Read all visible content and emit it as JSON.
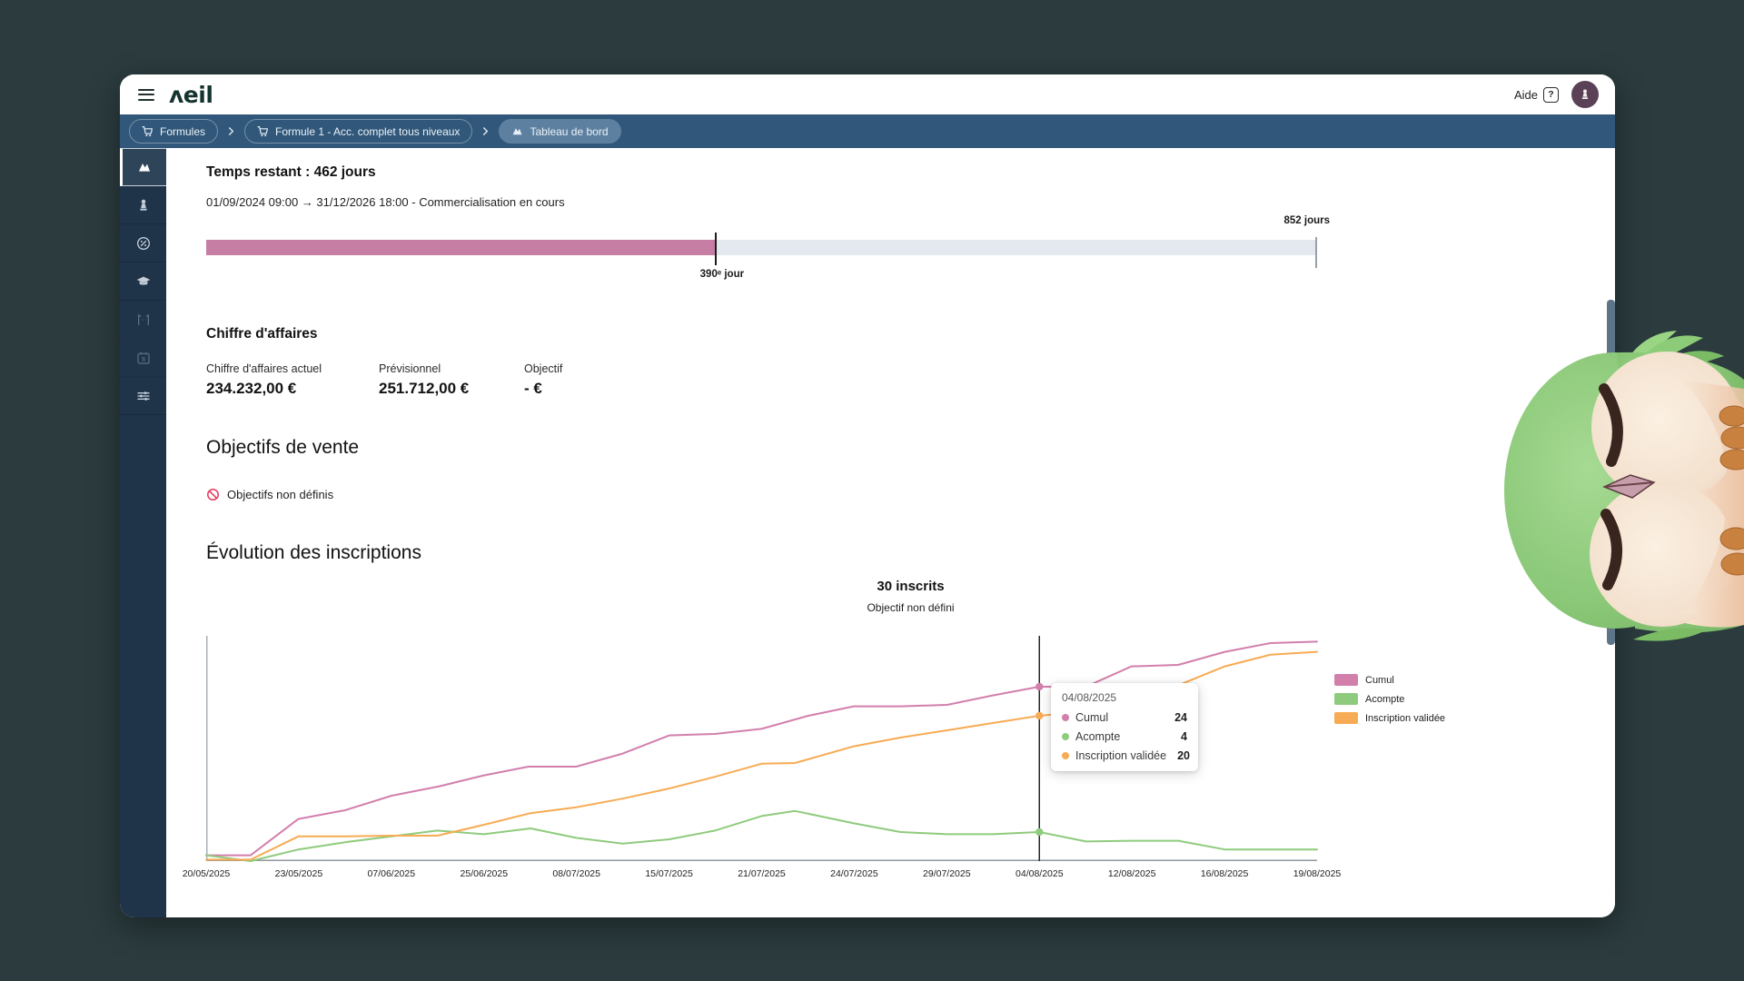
{
  "theme": {
    "background": "#2B3B3E",
    "breadcrumb_blue": "#31587A",
    "sidebar_navy": "#203449",
    "brand_teal": "#16342F",
    "progress_pink": "#C77EA5",
    "progress_track": "#E4E8EF",
    "alert_red": "#E8395E",
    "avatar_plum": "#5A4157"
  },
  "header": {
    "logo_text": "ʌeil",
    "help_label": "Aide",
    "help_icon": "?"
  },
  "breadcrumb": {
    "items": [
      {
        "label": "Formules",
        "icon": "cart"
      },
      {
        "label": "Formule 1 - Acc. complet tous niveaux",
        "icon": "cart"
      },
      {
        "label": "Tableau de bord",
        "icon": "dashboard",
        "active": true
      }
    ]
  },
  "sidebar": {
    "items": [
      {
        "icon": "dashboard-icon",
        "active": true,
        "disabled": false
      },
      {
        "icon": "pawn-icon",
        "active": false,
        "disabled": false
      },
      {
        "icon": "percent-icon",
        "active": false,
        "disabled": false
      },
      {
        "icon": "graduation-cap-icon",
        "active": false,
        "disabled": false
      },
      {
        "icon": "gates-icon",
        "active": false,
        "disabled": true
      },
      {
        "icon": "calendar-s-icon",
        "active": false,
        "disabled": true
      },
      {
        "icon": "sliders-icon",
        "active": false,
        "disabled": false
      }
    ]
  },
  "time_remaining": {
    "title": "Temps restant : 462 jours",
    "period": "01/09/2024 09:00 → 31/12/2026 18:00 - Commercialisation en cours",
    "total_label": "852 jours",
    "current_day_label": "390ᵉ jour",
    "progress_pct": 45.8
  },
  "revenue": {
    "title": "Chiffre d'affaires",
    "metrics": [
      {
        "label": "Chiffre d'affaires actuel",
        "value": "234.232,00 €"
      },
      {
        "label": "Prévisionnel",
        "value": "251.712,00 €"
      },
      {
        "label": "Objectif",
        "value": "- €"
      }
    ]
  },
  "sales_goals": {
    "title": "Objectifs de vente",
    "empty_message": "Objectifs non définis"
  },
  "chart_data": {
    "type": "line",
    "title": "Évolution des inscriptions",
    "headline": "30 inscrits",
    "subheadline": "Objectif non défini",
    "ylim": [
      0,
      31
    ],
    "grid": false,
    "legend_position": "right",
    "x_labels": [
      "20/05/2025",
      "23/05/2025",
      "07/06/2025",
      "25/06/2025",
      "08/07/2025",
      "15/07/2025",
      "21/07/2025",
      "24/07/2025",
      "29/07/2025",
      "04/08/2025",
      "12/08/2025",
      "16/08/2025",
      "19/08/2025"
    ],
    "series": [
      {
        "name": "Cumul",
        "color": "#D27FAC",
        "points": [
          [
            0,
            0.8
          ],
          [
            0.04,
            0.8
          ],
          [
            0.083,
            5.8
          ],
          [
            0.125,
            7
          ],
          [
            0.167,
            9
          ],
          [
            0.21,
            10.3
          ],
          [
            0.25,
            11.8
          ],
          [
            0.29,
            13
          ],
          [
            0.333,
            13
          ],
          [
            0.375,
            14.8
          ],
          [
            0.417,
            17.3
          ],
          [
            0.458,
            17.5
          ],
          [
            0.5,
            18.2
          ],
          [
            0.542,
            20
          ],
          [
            0.583,
            21.3
          ],
          [
            0.625,
            21.3
          ],
          [
            0.667,
            21.5
          ],
          [
            0.708,
            22.8
          ],
          [
            0.75,
            24
          ],
          [
            0.792,
            24
          ],
          [
            0.833,
            26.8
          ],
          [
            0.875,
            27
          ],
          [
            0.917,
            28.8
          ],
          [
            0.958,
            30
          ],
          [
            1,
            30.2
          ]
        ]
      },
      {
        "name": "Acompte",
        "color": "#8FCB7D",
        "points": [
          [
            0,
            0.8
          ],
          [
            0.04,
            0
          ],
          [
            0.083,
            1.6
          ],
          [
            0.125,
            2.6
          ],
          [
            0.167,
            3.4
          ],
          [
            0.208,
            4.2
          ],
          [
            0.25,
            3.7
          ],
          [
            0.292,
            4.5
          ],
          [
            0.333,
            3.2
          ],
          [
            0.375,
            2.4
          ],
          [
            0.417,
            3
          ],
          [
            0.458,
            4.2
          ],
          [
            0.5,
            6.2
          ],
          [
            0.53,
            6.9
          ],
          [
            0.583,
            5.2
          ],
          [
            0.625,
            4
          ],
          [
            0.667,
            3.7
          ],
          [
            0.708,
            3.7
          ],
          [
            0.75,
            4
          ],
          [
            0.792,
            2.7
          ],
          [
            0.833,
            2.8
          ],
          [
            0.875,
            2.8
          ],
          [
            0.917,
            1.6
          ],
          [
            1,
            1.6
          ]
        ]
      },
      {
        "name": "Inscription validée",
        "color": "#F7AB54",
        "points": [
          [
            0,
            0.2
          ],
          [
            0.04,
            0.2
          ],
          [
            0.083,
            3.4
          ],
          [
            0.125,
            3.4
          ],
          [
            0.167,
            3.5
          ],
          [
            0.208,
            3.5
          ],
          [
            0.25,
            5
          ],
          [
            0.292,
            6.6
          ],
          [
            0.333,
            7.4
          ],
          [
            0.375,
            8.6
          ],
          [
            0.417,
            10
          ],
          [
            0.458,
            11.6
          ],
          [
            0.5,
            13.4
          ],
          [
            0.53,
            13.5
          ],
          [
            0.583,
            15.8
          ],
          [
            0.625,
            17
          ],
          [
            0.667,
            18
          ],
          [
            0.708,
            19
          ],
          [
            0.75,
            20
          ],
          [
            0.792,
            20.6
          ],
          [
            0.833,
            23.4
          ],
          [
            0.875,
            24.2
          ],
          [
            0.917,
            26.8
          ],
          [
            0.958,
            28.4
          ],
          [
            1,
            28.8
          ]
        ]
      }
    ],
    "tooltip": {
      "date": "04/08/2025",
      "x_frac": 0.75,
      "rows": [
        {
          "series": "Cumul",
          "value": 24
        },
        {
          "series": "Acompte",
          "value": 4
        },
        {
          "series": "Inscription validée",
          "value": 20
        }
      ]
    }
  }
}
